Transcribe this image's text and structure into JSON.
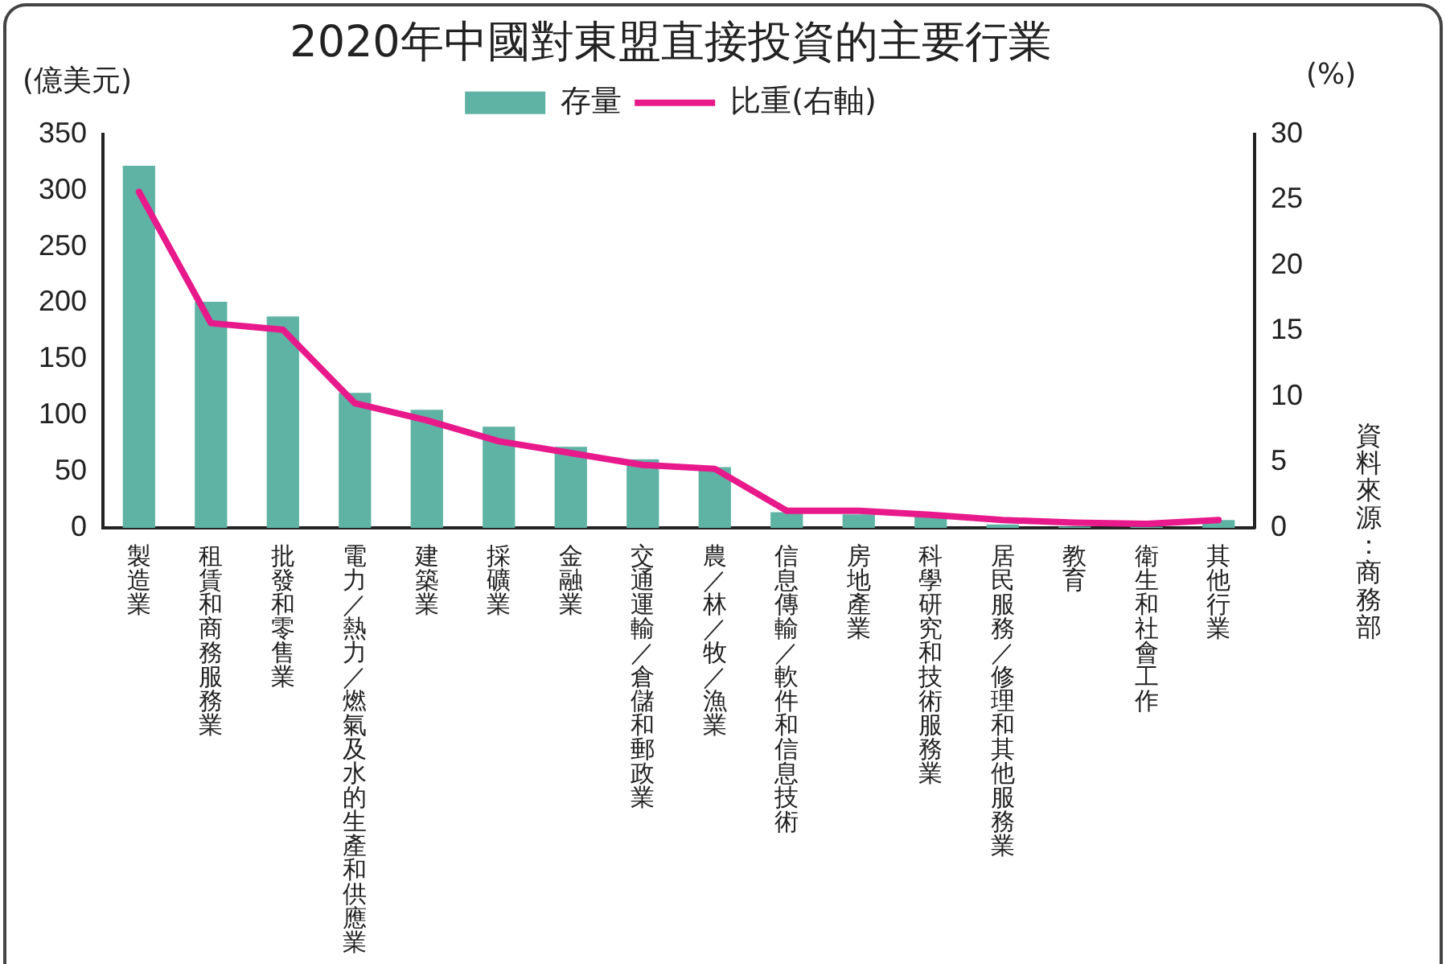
{
  "chart_data": {
    "type": "bar",
    "title": "2020年中國對東盟直接投資的主要行業",
    "ylabel": "(億美元)",
    "y2label": "(%)",
    "categories": [
      "製造業",
      "租賃和商務服務業",
      "批發和零售業",
      "電力／熱力／燃氣及水的生產和供應業",
      "建築業",
      "採礦業",
      "金融業",
      "交通運輸／倉儲和郵政業",
      "農／林／牧／漁業",
      "信息傳輸／軟件和信息技術",
      "房地產業",
      "科學研究和技術服務業",
      "居民服務／修理和其他服務業",
      "教育",
      "衛生和社會工作",
      "其他行業"
    ],
    "series": [
      {
        "name": "存量",
        "color": "#5fb3a5",
        "values": [
          322,
          201,
          188,
          120,
          105,
          90,
          72,
          61,
          54,
          14,
          12,
          10,
          3,
          1,
          1,
          7
        ]
      },
      {
        "name": "比重(右軸)",
        "type": "line",
        "axis": "y2",
        "color": "#e8198b",
        "values": [
          25.6,
          15.6,
          15.1,
          9.5,
          8.2,
          6.6,
          5.7,
          4.8,
          4.5,
          1.3,
          1.3,
          1.0,
          0.6,
          0.4,
          0.3,
          0.6
        ]
      }
    ],
    "ylim": [
      0,
      350
    ],
    "yticks": [
      0,
      50,
      100,
      150,
      200,
      250,
      300,
      350
    ],
    "y2lim": [
      0,
      30
    ],
    "y2ticks": [
      0,
      5,
      10,
      15,
      20,
      25,
      30
    ],
    "legend": "top",
    "grid": false,
    "marker": "none",
    "annotations": [
      "資料來源：商務部"
    ]
  }
}
